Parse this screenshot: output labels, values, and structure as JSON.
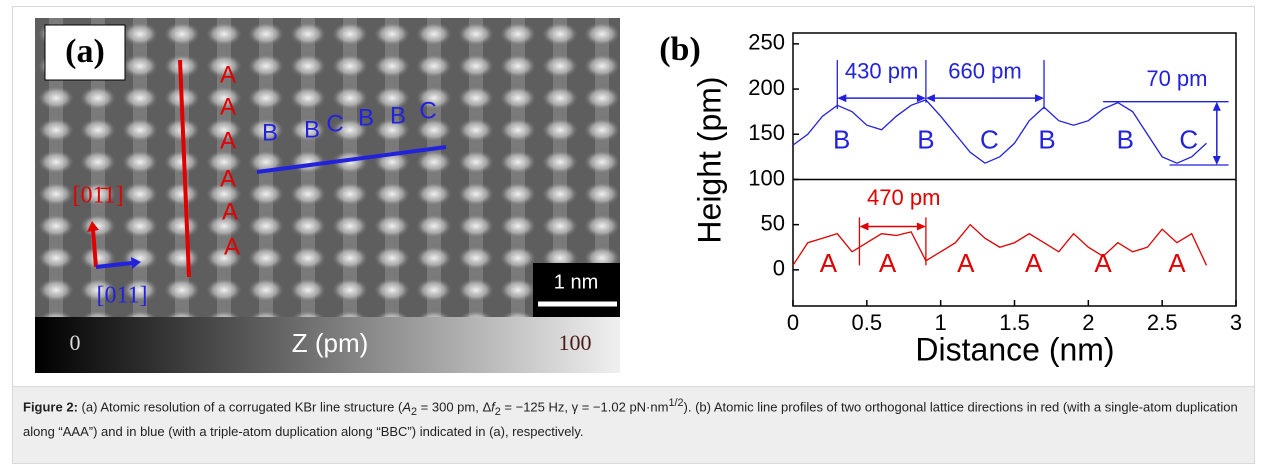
{
  "panel_a": {
    "label": "(a)",
    "a_letters": [
      "A",
      "A",
      "A",
      "A",
      "A",
      "A"
    ],
    "b_letters": [
      "B",
      "B",
      "C",
      "B",
      "B",
      "C"
    ],
    "dir_red": "[01̄1]",
    "dir_blue": "[011]",
    "scale_bar": "1 nm",
    "colorbar_min": "0",
    "colorbar_title": "Z (pm)",
    "colorbar_max": "100"
  },
  "chart_data": {
    "type": "line",
    "label": "(b)",
    "xlabel": "Distance (nm)",
    "ylabel": "Height (pm)",
    "x": [
      0,
      0.1,
      0.2,
      0.3,
      0.4,
      0.5,
      0.6,
      0.7,
      0.8,
      0.9,
      1.0,
      1.1,
      1.2,
      1.3,
      1.4,
      1.5,
      1.6,
      1.7,
      1.8,
      1.9,
      2.0,
      2.1,
      2.2,
      2.3,
      2.4,
      2.5,
      2.6,
      2.7,
      2.8
    ],
    "series": [
      {
        "color": "#2222dd",
        "values": [
          138,
          150,
          170,
          182,
          175,
          160,
          155,
          170,
          182,
          188,
          170,
          150,
          130,
          118,
          125,
          140,
          165,
          180,
          165,
          160,
          165,
          178,
          185,
          175,
          150,
          125,
          118,
          125,
          140
        ]
      },
      {
        "color": "#e00000",
        "values": [
          5,
          30,
          35,
          40,
          20,
          30,
          40,
          38,
          42,
          10,
          20,
          30,
          50,
          35,
          25,
          30,
          40,
          30,
          20,
          40,
          25,
          15,
          30,
          20,
          25,
          45,
          30,
          40,
          5
        ]
      }
    ],
    "xlim": [
      0,
      3
    ],
    "xticks": [
      0,
      0.5,
      1,
      1.5,
      2,
      2.5,
      3
    ],
    "ylim": [
      -40,
      262
    ],
    "yticks": [
      0,
      50,
      100,
      150,
      200,
      250
    ],
    "hline": 100,
    "annotations": [
      "430 pm",
      "660 pm",
      "70 pm",
      "470 pm"
    ],
    "blue_labels": [
      "B",
      "B",
      "C",
      "B",
      "B",
      "C"
    ],
    "red_labels": [
      "A",
      "A",
      "A",
      "A",
      "A",
      "A"
    ]
  },
  "caption": {
    "label": "Figure 2:",
    "parts": [
      "(a) Atomic resolution of a corrugated KBr line structure (",
      "A",
      "2",
      " = 300 pm, Δ",
      "f",
      "2",
      " = −125 Hz, γ = −1.02 pN·nm",
      "1/2",
      "). (b) Atomic line profiles of two orthogonal lattice directions in red (with a single-atom duplication along “AAA”) and in blue (with a triple-atom duplication along “BBC”) indicated in (a), respectively."
    ]
  }
}
